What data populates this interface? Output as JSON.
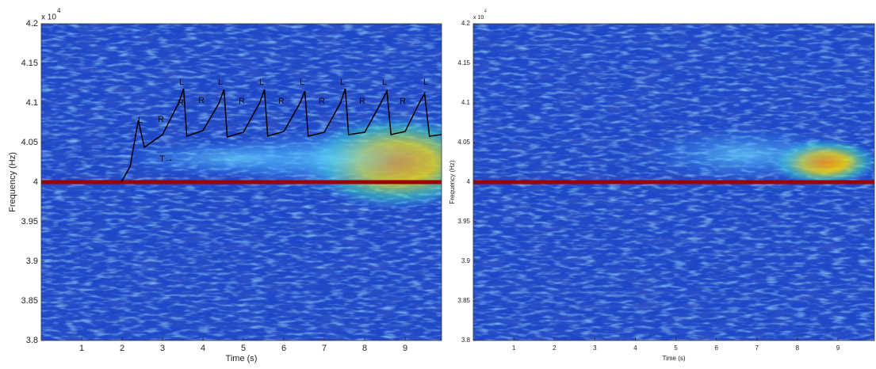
{
  "chart_data": [
    {
      "type": "spectrogram",
      "xlabel": "Time (s)",
      "ylabel": "Frequency (Hz)",
      "y_scale_label": "x 10",
      "y_scale_exponent": "4",
      "xlim": [
        0,
        9.9
      ],
      "xticks": [
        1,
        2,
        3,
        4,
        5,
        6,
        7,
        8,
        9
      ],
      "ylim": [
        3.8,
        4.2
      ],
      "yticks": [
        4.2,
        4.15,
        4.1,
        4.05,
        4,
        3.95,
        3.9,
        3.85,
        3.8
      ],
      "carrier": 4,
      "trace": {
        "color": "#000000",
        "x": [
          1.98,
          2.2,
          2.4,
          2.55,
          3.0,
          3.4,
          3.52,
          3.6,
          4.0,
          4.4,
          4.52,
          4.6,
          5.0,
          5.4,
          5.52,
          5.6,
          6.0,
          6.4,
          6.52,
          6.6,
          7.0,
          7.4,
          7.52,
          7.6,
          8.0,
          8.4,
          8.55,
          8.65,
          9.0,
          9.35,
          9.48,
          9.6,
          9.9
        ],
        "y": [
          4.0,
          4.02,
          4.078,
          4.044,
          4.06,
          4.1,
          4.118,
          4.058,
          4.065,
          4.1,
          4.117,
          4.057,
          4.063,
          4.1,
          4.117,
          4.058,
          4.064,
          4.1,
          4.115,
          4.058,
          4.063,
          4.1,
          4.118,
          4.06,
          4.063,
          4.1,
          4.115,
          4.06,
          4.064,
          4.1,
          4.112,
          4.058,
          4.06
        ]
      },
      "annotations": [
        "L",
        "L",
        "L",
        "L",
        "L",
        "L",
        "L",
        "L",
        "R",
        "R",
        "R",
        "R",
        "R",
        "R",
        "R",
        "R",
        "T→"
      ]
    },
    {
      "type": "spectrogram",
      "xlabel": "Time (s)",
      "ylabel": "Frequency (Hz)",
      "y_scale_label": "x 10",
      "y_scale_exponent": "4",
      "xlim": [
        0,
        9.9
      ],
      "xticks": [
        1,
        2,
        3,
        4,
        5,
        6,
        7,
        8,
        9
      ],
      "ylim": [
        3.8,
        4.2
      ],
      "yticks": [
        4.2,
        4.15,
        4.1,
        4.05,
        4,
        3.95,
        3.9,
        3.85,
        3.8
      ],
      "carrier": 4
    }
  ]
}
